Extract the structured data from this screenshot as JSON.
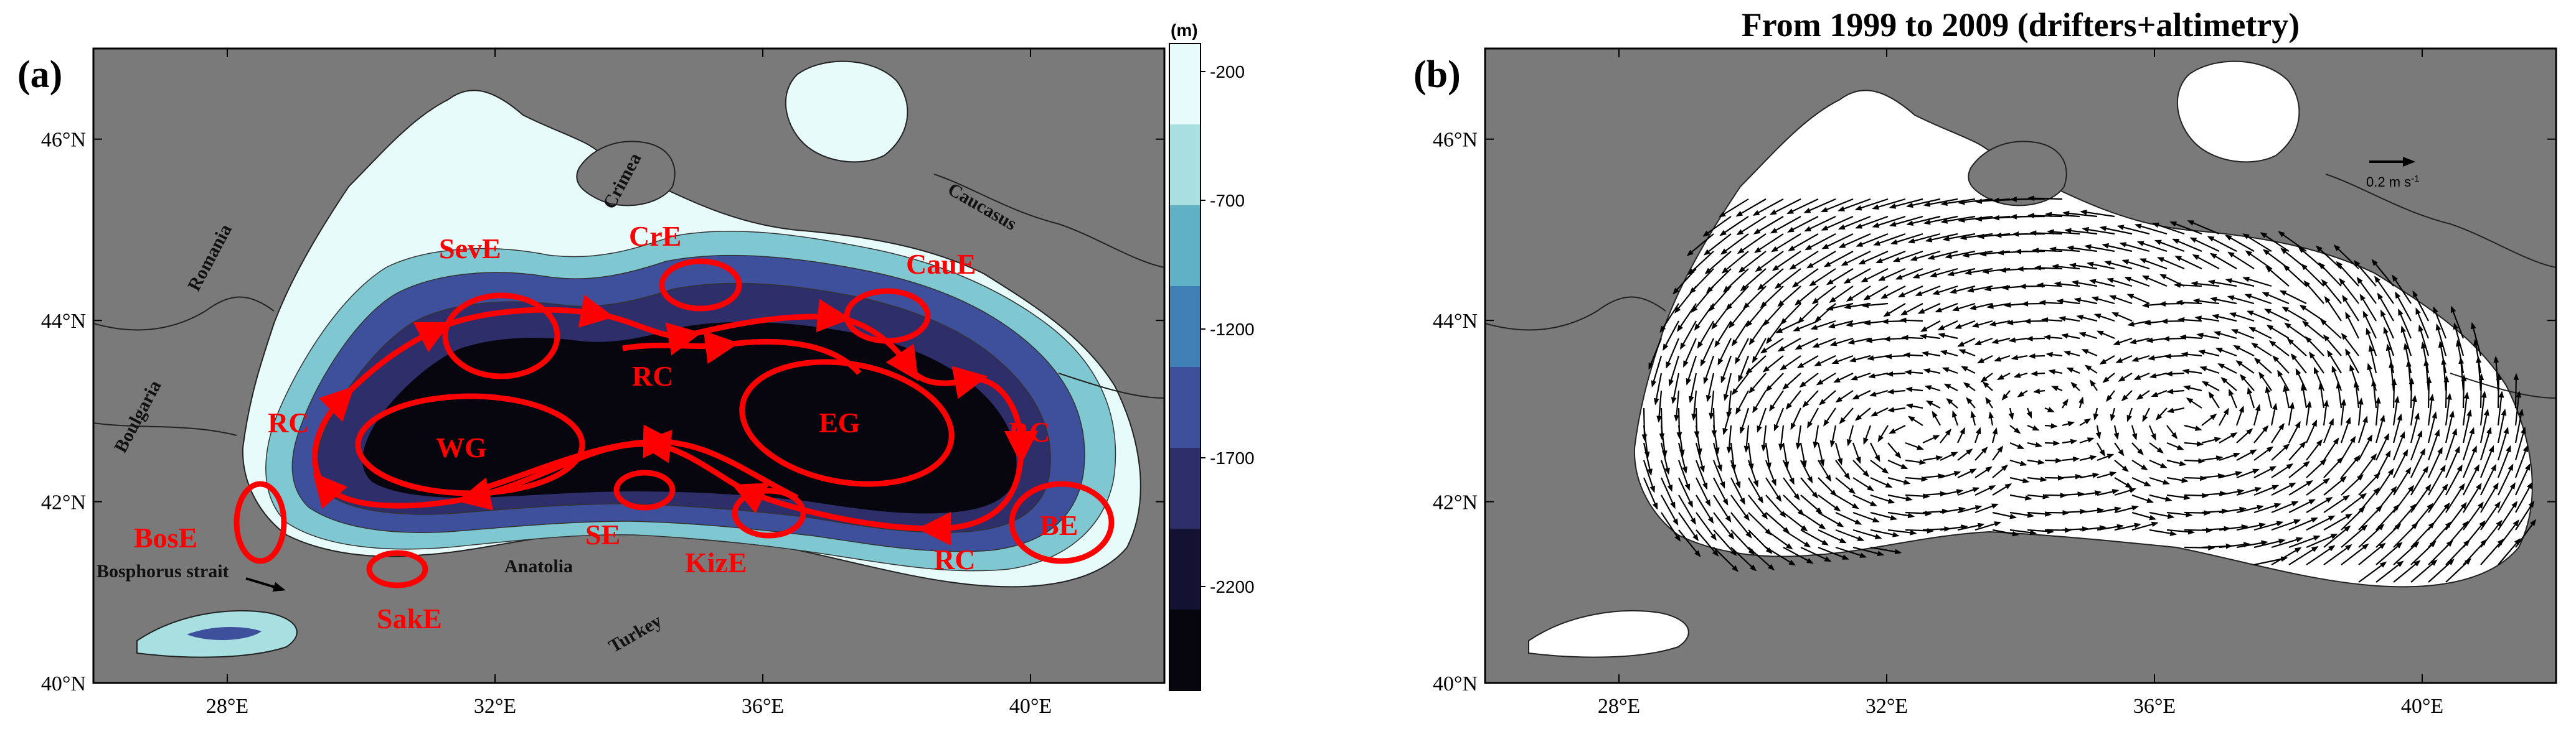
{
  "panel_a": {
    "letter": "(a)",
    "colorbar_unit": "(m)",
    "colorbar_ticks": [
      "-200",
      "-700",
      "-1200",
      "-1700",
      "-2200"
    ],
    "colorbar_colors": [
      "#e8fbfb",
      "#a8e0e2",
      "#5fb2c6",
      "#3f7fb6",
      "#3e509b",
      "#2e2e6a",
      "#141232",
      "#07050e"
    ],
    "features": {
      "SevE": "SevE",
      "CrE": "CrE",
      "CauE": "CauE",
      "RC_center": "RC",
      "RC_west": "RC",
      "WG": "WG",
      "EG": "EG",
      "RC_east": "RC",
      "BosE": "BosE",
      "SE": "SE",
      "KizE": "KizE",
      "BE": "BE",
      "SakE": "SakE",
      "RC_south": "RC"
    },
    "places": {
      "romania": "Romania",
      "crimea": "Crimea",
      "caucasus": "Caucasus",
      "boulgaria": "Boulgaria",
      "bosphorus": "Bosphorus strait",
      "anatolia": "Anatolia",
      "turkey": "Turkey"
    }
  },
  "panel_b": {
    "letter": "(b)",
    "title": "From 1999 to 2009 (drifters+altimetry)",
    "scale_label": "0.2 m s-1",
    "scale_value": "0.2",
    "scale_unit": "m s",
    "scale_exp": "-1"
  },
  "axes": {
    "x_ticks": [
      "28°E",
      "32°E",
      "36°E",
      "40°E"
    ],
    "y_ticks": [
      "46°N",
      "44°N",
      "42°N",
      "40°N"
    ],
    "x_tick_values": [
      28,
      32,
      36,
      40
    ],
    "y_tick_values": [
      46,
      44,
      42,
      40
    ],
    "lon_range": [
      26,
      42
    ],
    "lat_range": [
      40,
      47
    ]
  },
  "colors": {
    "land": "#7a7a7a",
    "feature_red": "#ff0000",
    "arrow": "#000000"
  }
}
